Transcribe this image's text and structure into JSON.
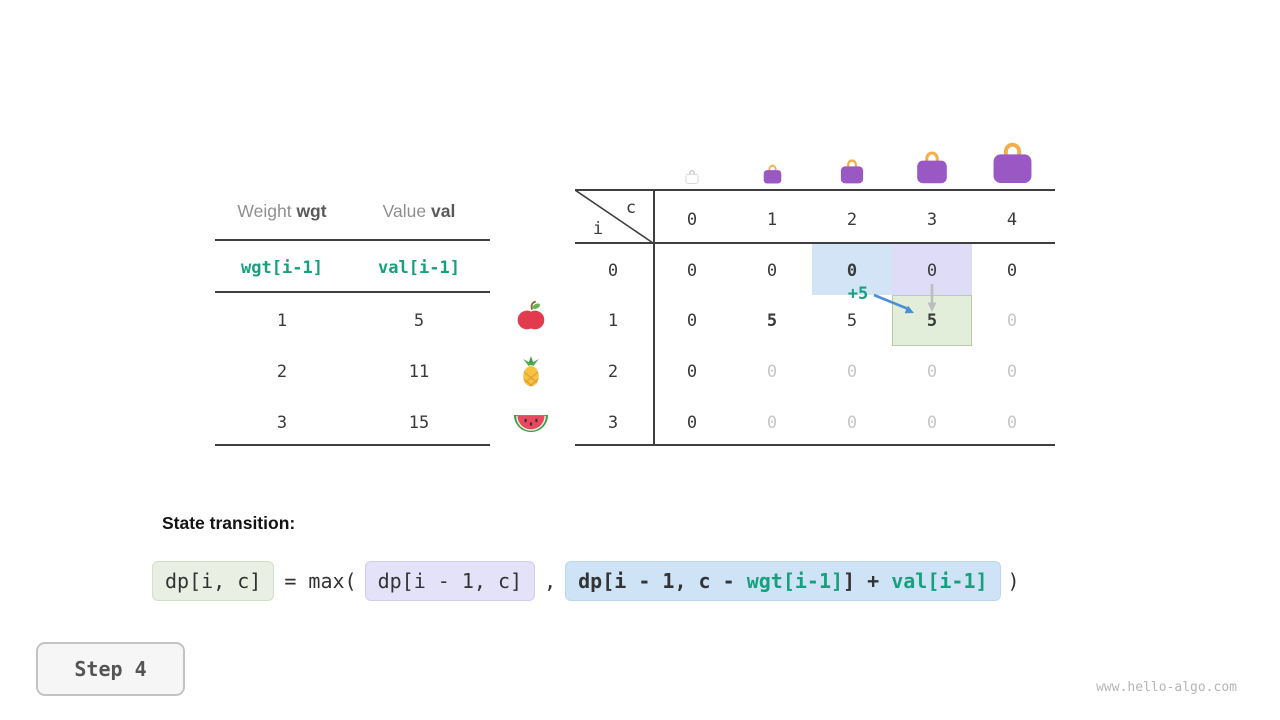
{
  "fruit_table": {
    "col1_label": "Weight",
    "col1_code": "wgt",
    "col2_label": "Value",
    "col2_code": "val",
    "sub1": "wgt[i-1]",
    "sub2": "val[i-1]",
    "rows": [
      {
        "weight": "1",
        "value": "5",
        "fruit": "apple-icon"
      },
      {
        "weight": "2",
        "value": "11",
        "fruit": "pineapple-icon"
      },
      {
        "weight": "3",
        "value": "15",
        "fruit": "watermelon-icon"
      }
    ]
  },
  "dp_table": {
    "corner_top": "c",
    "corner_side": "i",
    "col_headers": [
      "0",
      "1",
      "2",
      "3",
      "4"
    ],
    "row_headers": [
      "0",
      "1",
      "2",
      "3"
    ],
    "cells": [
      [
        {
          "t": "0"
        },
        {
          "t": "0"
        },
        {
          "t": "0",
          "bold": true,
          "hl": "blue"
        },
        {
          "t": "0",
          "hl": "lavender"
        },
        {
          "t": "0"
        }
      ],
      [
        {
          "t": "0"
        },
        {
          "t": "5",
          "bold": true
        },
        {
          "t": "5"
        },
        {
          "t": "5",
          "bold": true,
          "hl": "green"
        },
        {
          "t": "0",
          "gray": true
        }
      ],
      [
        {
          "t": "0"
        },
        {
          "t": "0",
          "gray": true
        },
        {
          "t": "0",
          "gray": true
        },
        {
          "t": "0",
          "gray": true
        },
        {
          "t": "0",
          "gray": true
        }
      ],
      [
        {
          "t": "0"
        },
        {
          "t": "0",
          "gray": true
        },
        {
          "t": "0",
          "gray": true
        },
        {
          "t": "0",
          "gray": true
        },
        {
          "t": "0",
          "gray": true
        }
      ]
    ],
    "bags": [
      {
        "size": 14,
        "variant": "empty"
      },
      {
        "size": 19,
        "variant": "purple"
      },
      {
        "size": 24,
        "variant": "purple"
      },
      {
        "size": 32,
        "variant": "purple"
      },
      {
        "size": 41,
        "variant": "purple"
      }
    ],
    "annotation": "+5"
  },
  "transition": {
    "label": "State transition:",
    "lhs": "dp[i, c]",
    "equals": "= max(",
    "option1": "dp[i - 1, c]",
    "comma": ",",
    "option2": [
      {
        "t": "dp[i - 1, c - ",
        "color": "dark"
      },
      {
        "t": "wgt[i-1]",
        "color": "teal"
      },
      {
        "t": "] + ",
        "color": "dark"
      },
      {
        "t": "val[i-1]",
        "color": "teal"
      }
    ],
    "close": ")"
  },
  "step": {
    "label": "Step 4"
  },
  "watermark": "www.hello-algo.com",
  "colors": {
    "teal": "#17a07e",
    "hl_blue": "#d3e4f6",
    "hl_lavender": "#dedcf7",
    "hl_green": "#e2eeda",
    "hl_green_border": "#b9cdaa",
    "arrow_blue": "#4a8fd3",
    "arrow_gray": "#bdbdbd",
    "bag_purple": "#9a58c5",
    "bag_handle": "#f2ae4c",
    "bag_empty": "#c8c8c8"
  }
}
